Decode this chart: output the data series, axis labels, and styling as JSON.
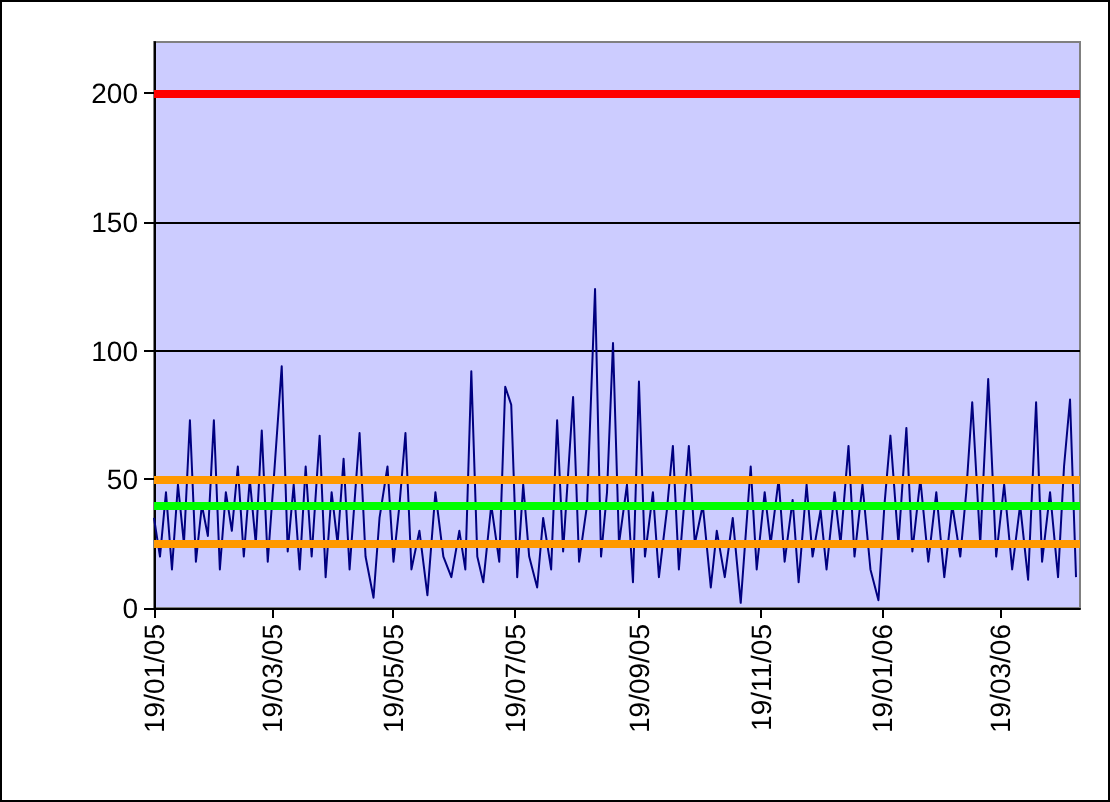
{
  "chart_data": {
    "type": "line",
    "x": [
      "2005-01-19",
      "2005-01-22",
      "2005-01-25",
      "2005-01-28",
      "2005-01-31",
      "2005-02-03",
      "2005-02-06",
      "2005-02-09",
      "2005-02-12",
      "2005-02-15",
      "2005-02-18",
      "2005-02-21",
      "2005-02-24",
      "2005-02-27",
      "2005-03-02",
      "2005-03-05",
      "2005-03-08",
      "2005-03-11",
      "2005-03-14",
      "2005-03-17",
      "2005-03-20",
      "2005-03-24",
      "2005-03-27",
      "2005-03-30",
      "2005-04-02",
      "2005-04-05",
      "2005-04-08",
      "2005-04-12",
      "2005-04-15",
      "2005-04-18",
      "2005-04-21",
      "2005-04-24",
      "2005-04-27",
      "2005-05-02",
      "2005-05-05",
      "2005-05-09",
      "2005-05-12",
      "2005-05-16",
      "2005-05-19",
      "2005-05-22",
      "2005-05-25",
      "2005-05-28",
      "2005-06-01",
      "2005-06-05",
      "2005-06-09",
      "2005-06-13",
      "2005-06-17",
      "2005-06-21",
      "2005-06-24",
      "2005-06-27",
      "2005-06-30",
      "2005-07-03",
      "2005-07-07",
      "2005-07-11",
      "2005-07-14",
      "2005-07-17",
      "2005-07-20",
      "2005-07-23",
      "2005-07-26",
      "2005-07-30",
      "2005-08-02",
      "2005-08-06",
      "2005-08-09",
      "2005-08-12",
      "2005-08-17",
      "2005-08-20",
      "2005-08-24",
      "2005-08-28",
      "2005-08-31",
      "2005-09-03",
      "2005-09-06",
      "2005-09-09",
      "2005-09-13",
      "2005-09-16",
      "2005-09-19",
      "2005-09-22",
      "2005-09-26",
      "2005-09-29",
      "2005-10-03",
      "2005-10-06",
      "2005-10-09",
      "2005-10-14",
      "2005-10-17",
      "2005-10-21",
      "2005-10-25",
      "2005-10-28",
      "2005-11-01",
      "2005-11-05",
      "2005-11-09",
      "2005-11-14",
      "2005-11-17",
      "2005-11-21",
      "2005-11-24",
      "2005-11-28",
      "2005-12-01",
      "2005-12-05",
      "2005-12-08",
      "2005-12-12",
      "2005-12-15",
      "2005-12-19",
      "2005-12-22",
      "2005-12-26",
      "2005-12-29",
      "2006-01-02",
      "2006-01-05",
      "2006-01-09",
      "2006-01-13",
      "2006-01-17",
      "2006-01-20",
      "2006-01-23",
      "2006-01-27",
      "2006-01-31",
      "2006-02-03",
      "2006-02-07",
      "2006-02-11",
      "2006-02-15",
      "2006-02-19",
      "2006-02-23",
      "2006-02-27",
      "2006-03-02",
      "2006-03-05",
      "2006-03-09",
      "2006-03-13",
      "2006-03-17",
      "2006-03-21",
      "2006-03-25",
      "2006-03-29",
      "2006-04-02",
      "2006-04-06",
      "2006-04-09",
      "2006-04-13",
      "2006-04-17",
      "2006-04-20",
      "2006-04-23",
      "2006-04-26"
    ],
    "series": [
      {
        "color": "#000080",
        "values": [
          35,
          20,
          45,
          15,
          48,
          25,
          73,
          18,
          40,
          28,
          73,
          15,
          45,
          30,
          55,
          20,
          50,
          25,
          69,
          18,
          50,
          94,
          22,
          48,
          15,
          55,
          20,
          67,
          12,
          45,
          25,
          58,
          15,
          68,
          20,
          4,
          35,
          55,
          18,
          40,
          68,
          15,
          30,
          5,
          45,
          20,
          12,
          30,
          15,
          92,
          20,
          10,
          40,
          18,
          86,
          79,
          12,
          48,
          20,
          8,
          35,
          15,
          73,
          22,
          82,
          18,
          40,
          124,
          20,
          45,
          103,
          25,
          48,
          10,
          88,
          20,
          45,
          12,
          38,
          63,
          15,
          63,
          25,
          40,
          8,
          30,
          12,
          35,
          2,
          55,
          15,
          45,
          25,
          50,
          18,
          42,
          10,
          48,
          20,
          38,
          15,
          45,
          25,
          63,
          20,
          48,
          15,
          3,
          40,
          67,
          25,
          70,
          22,
          50,
          18,
          45,
          12,
          40,
          20,
          45,
          80,
          25,
          89,
          20,
          48,
          15,
          40,
          11,
          80,
          18,
          45,
          12,
          55,
          81,
          12
        ]
      }
    ],
    "xlim": [
      "2005-01-19",
      "2006-04-28"
    ],
    "xticks": [
      {
        "value": "2005-01-19",
        "label": "19/01/05"
      },
      {
        "value": "2005-03-19",
        "label": "19/03/05"
      },
      {
        "value": "2005-05-19",
        "label": "19/05/05"
      },
      {
        "value": "2005-07-19",
        "label": "19/07/05"
      },
      {
        "value": "2005-09-19",
        "label": "19/09/05"
      },
      {
        "value": "2005-11-19",
        "label": "19/11/05"
      },
      {
        "value": "2006-01-19",
        "label": "19/01/06"
      },
      {
        "value": "2006-03-19",
        "label": "19/03/06"
      }
    ],
    "ylim": [
      0,
      220
    ],
    "yticks": [
      0,
      50,
      100,
      150,
      200
    ],
    "grid": "y",
    "marker": "none",
    "line_style": "solid",
    "ref_lines": [
      {
        "axis": "y",
        "value": 200,
        "color": "#ff0000"
      },
      {
        "axis": "y",
        "value": 50,
        "color": "#ff9900"
      },
      {
        "axis": "y",
        "value": 40,
        "color": "#00ff00"
      },
      {
        "axis": "y",
        "value": 25,
        "color": "#ff9900"
      }
    ]
  }
}
